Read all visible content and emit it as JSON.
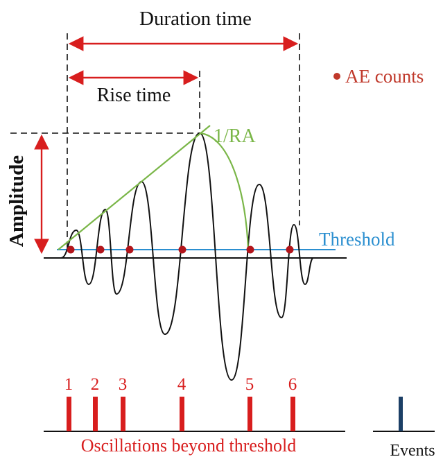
{
  "labels": {
    "duration_time": "Duration time",
    "rise_time": "Rise time",
    "amplitude": "Amplitude",
    "ra": "1/RA",
    "threshold": "Threshold",
    "legend_ae_counts": "AE counts",
    "oscillations_caption": "Oscillations beyond threshold",
    "events": "Events"
  },
  "counts": [
    {
      "label": "1"
    },
    {
      "label": "2"
    },
    {
      "label": "3"
    },
    {
      "label": "4"
    },
    {
      "label": "5"
    },
    {
      "label": "6"
    }
  ],
  "colors": {
    "red": "#d81e1e",
    "dark_red": "#b3151b",
    "green": "#7ab648",
    "blue": "#2b8fd0",
    "black": "#111111",
    "event_bar": "#1c3f66"
  }
}
